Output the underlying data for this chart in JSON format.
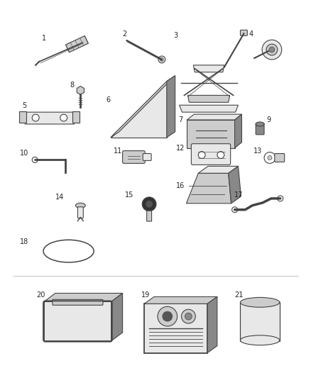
{
  "bg_color": "#ffffff",
  "fig_width": 4.38,
  "fig_height": 5.33,
  "dpi": 100,
  "line_color": "#444444",
  "text_color": "#222222",
  "gray_light": "#e8e8e8",
  "gray_mid": "#cccccc",
  "gray_dark": "#888888"
}
